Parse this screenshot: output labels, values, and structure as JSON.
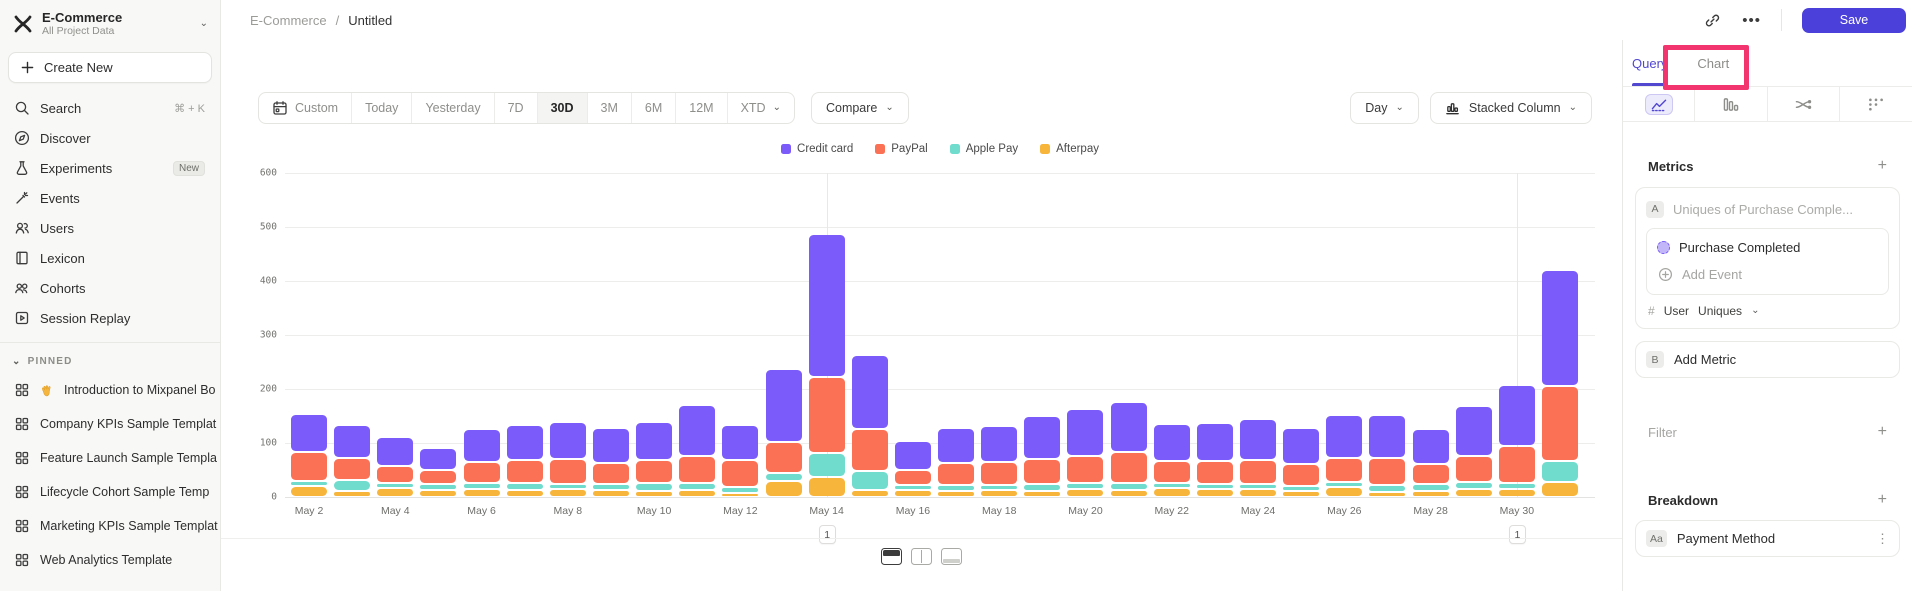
{
  "theme": {
    "accent_purple": "#5247cf",
    "save_button": "#4c40db",
    "annotation_pink": "#f2356e",
    "sidebar_bg": "#f8f8f6"
  },
  "topbar": {
    "breadcrumb_project": "E-Commerce",
    "breadcrumb_sep": "/",
    "breadcrumb_page": "Untitled",
    "save_label": "Save"
  },
  "sidebar": {
    "project_name": "E-Commerce",
    "project_subtitle": "All Project Data",
    "create_new_label": "Create New",
    "nav": [
      {
        "icon": "search-icon",
        "label": "Search",
        "shortcut": "⌘ + K"
      },
      {
        "icon": "discover-icon",
        "label": "Discover"
      },
      {
        "icon": "experiments-icon",
        "label": "Experiments",
        "badge": "New"
      },
      {
        "icon": "events-icon",
        "label": "Events"
      },
      {
        "icon": "users-icon",
        "label": "Users"
      },
      {
        "icon": "lexicon-icon",
        "label": "Lexicon"
      },
      {
        "icon": "cohorts-icon",
        "label": "Cohorts"
      },
      {
        "icon": "session-replay-icon",
        "label": "Session Replay"
      }
    ],
    "pinned_header": "PINNED",
    "pinned": [
      {
        "label": "Introduction to Mixpanel Bo",
        "emoji": "wave"
      },
      {
        "label": "Company KPIs Sample Templat"
      },
      {
        "label": "Feature Launch Sample Templa"
      },
      {
        "label": "Lifecycle Cohort Sample Temp"
      },
      {
        "label": "Marketing KPIs Sample Templat"
      },
      {
        "label": "Web Analytics Template"
      }
    ]
  },
  "controls": {
    "date_ranges": [
      "Custom",
      "Today",
      "Yesterday",
      "7D",
      "30D",
      "3M",
      "6M",
      "12M",
      "XTD"
    ],
    "active_range": "30D",
    "compare_label": "Compare",
    "granularity_label": "Day",
    "chart_type_label": "Stacked Column"
  },
  "chart_data": {
    "type": "bar",
    "stacked": true,
    "title": "",
    "xlabel": "",
    "ylabel": "",
    "ylim": [
      0,
      600
    ],
    "yticks": [
      0,
      100,
      200,
      300,
      400,
      500,
      600
    ],
    "grid": "horizontal",
    "legend_position": "top-center",
    "x": [
      "May 2",
      "May 3",
      "May 4",
      "May 5",
      "May 6",
      "May 7",
      "May 8",
      "May 9",
      "May 10",
      "May 11",
      "May 12",
      "May 13",
      "May 14",
      "May 15",
      "May 16",
      "May 17",
      "May 18",
      "May 19",
      "May 20",
      "May 21",
      "May 22",
      "May 23",
      "May 24",
      "May 25",
      "May 26",
      "May 27",
      "May 28",
      "May 29",
      "May 30",
      "May 31"
    ],
    "x_tick_labels": [
      "May 2",
      "May 4",
      "May 6",
      "May 8",
      "May 10",
      "May 12",
      "May 14",
      "May 16",
      "May 18",
      "May 20",
      "May 22",
      "May 24",
      "May 26",
      "May 28",
      "May 30"
    ],
    "series": [
      {
        "name": "Credit card",
        "color": "#7b5cfa",
        "values": [
          70,
          60,
          53,
          40,
          60,
          64,
          68,
          65,
          70,
          92,
          65,
          134,
          264,
          136,
          52,
          65,
          65,
          80,
          86,
          92,
          68,
          69,
          74,
          66,
          78,
          78,
          64,
          90,
          111,
          215
        ]
      },
      {
        "name": "PayPal",
        "color": "#fb7155",
        "values": [
          52,
          40,
          30,
          26,
          38,
          42,
          45,
          38,
          42,
          50,
          48,
          58,
          140,
          78,
          28,
          40,
          42,
          45,
          50,
          56,
          40,
          42,
          44,
          40,
          44,
          50,
          36,
          48,
          68,
          137
        ]
      },
      {
        "name": "Apple Pay",
        "color": "#6fdcce",
        "values": [
          8,
          20,
          8,
          10,
          10,
          12,
          8,
          10,
          14,
          12,
          10,
          14,
          42,
          34,
          8,
          10,
          8,
          12,
          10,
          12,
          6,
          8,
          8,
          8,
          8,
          12,
          12,
          12,
          10,
          38
        ]
      },
      {
        "name": "Afterpay",
        "color": "#f8b53c",
        "values": [
          20,
          10,
          16,
          12,
          14,
          12,
          14,
          12,
          10,
          12,
          6,
          28,
          37,
          12,
          12,
          10,
          12,
          10,
          14,
          12,
          16,
          14,
          14,
          10,
          18,
          8,
          10,
          14,
          14,
          27
        ]
      }
    ],
    "annotations": [
      {
        "x": "May 14",
        "label": "1"
      },
      {
        "x": "May 30",
        "label": "1"
      }
    ]
  },
  "right_panel": {
    "tabs": {
      "query": "Query",
      "chart": "Chart"
    },
    "metrics": {
      "title": "Metrics",
      "row_a_badge": "A",
      "row_a_placeholder": "Uniques of Purchase Comple...",
      "event_name": "Purchase Completed",
      "add_event_label": "Add Event",
      "agg_prefix": "#",
      "agg_entity": "User",
      "agg_type": "Uniques",
      "row_b_badge": "B",
      "add_metric_label": "Add Metric"
    },
    "filter": {
      "title": "Filter"
    },
    "breakdown": {
      "title": "Breakdown",
      "item_badge": "Aa",
      "item_label": "Payment Method"
    }
  }
}
